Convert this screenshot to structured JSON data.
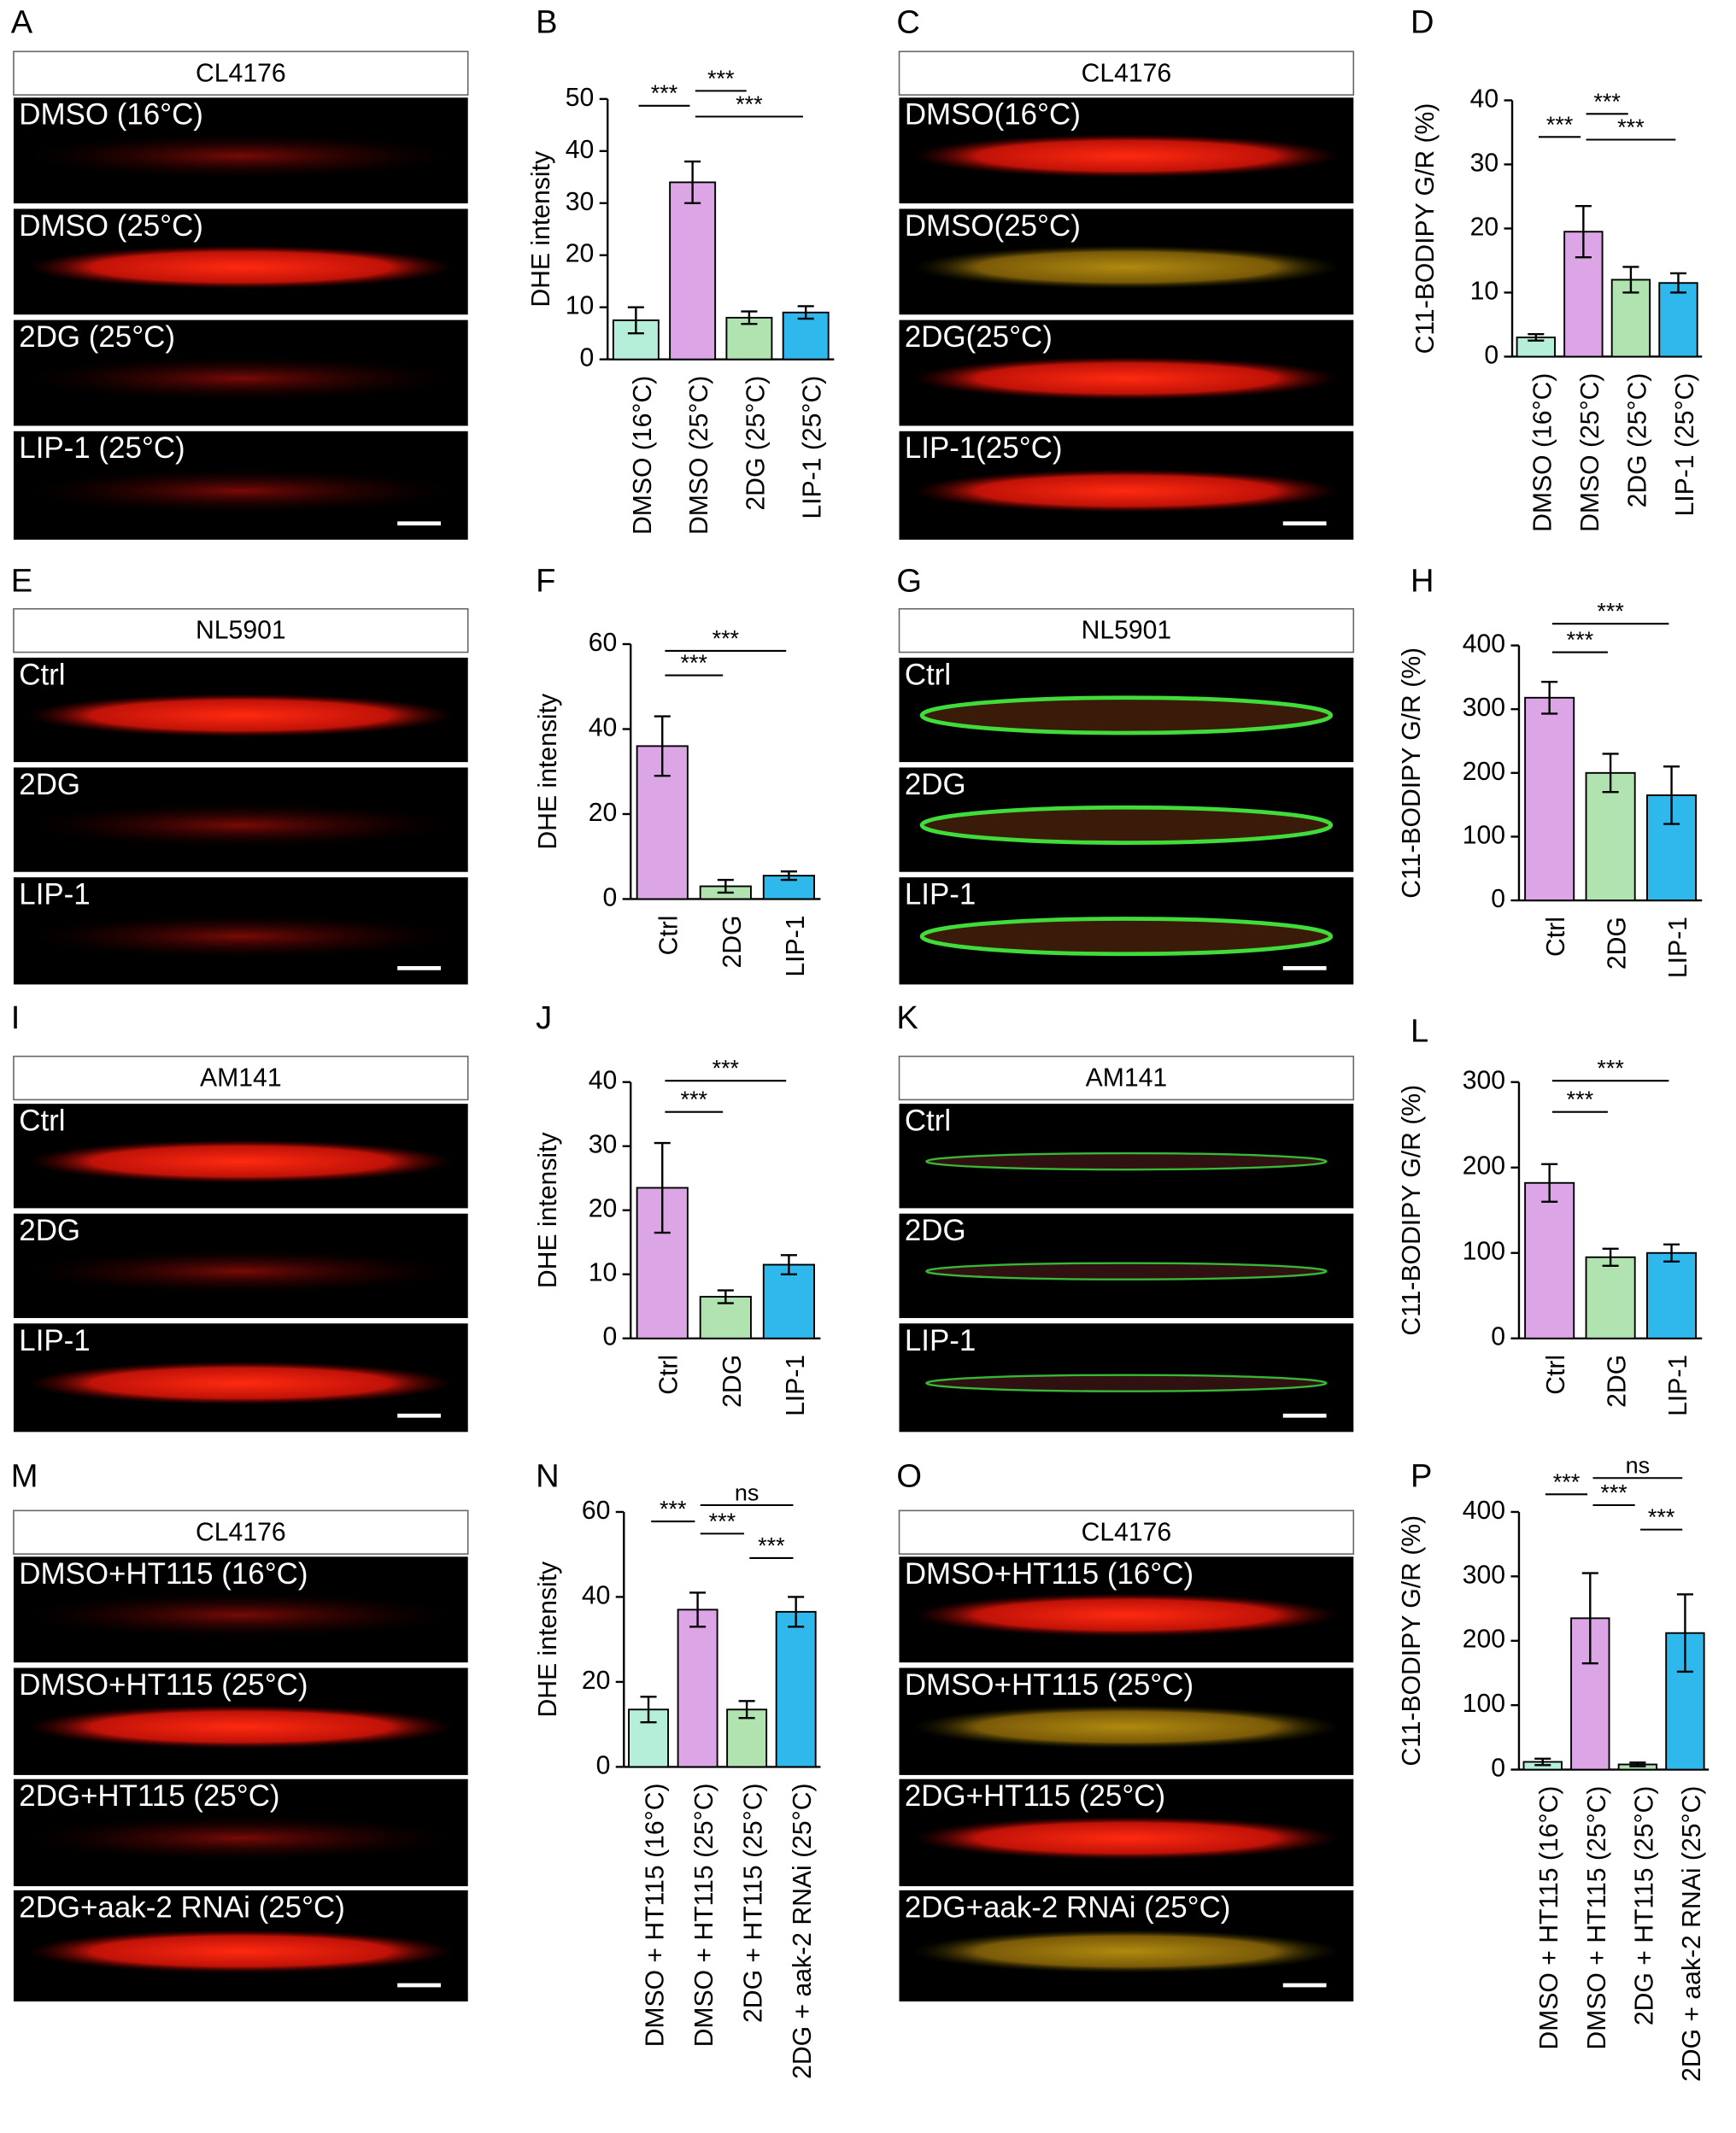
{
  "image_panels": [
    {
      "panel": "A",
      "strain": "CL4176",
      "conditions": [
        "DMSO (16°C)",
        "DMSO (25°C)",
        "2DG (25°C)",
        "LIP-1  (25°C)"
      ]
    },
    {
      "panel": "C",
      "strain": "CL4176",
      "conditions": [
        "DMSO(16°C)",
        "DMSO(25°C)",
        "2DG(25°C)",
        "LIP-1(25°C)"
      ]
    },
    {
      "panel": "E",
      "strain": "NL5901",
      "conditions": [
        "Ctrl",
        "2DG",
        "LIP-1"
      ]
    },
    {
      "panel": "G",
      "strain": "NL5901",
      "conditions": [
        "Ctrl",
        "2DG",
        "LIP-1"
      ]
    },
    {
      "panel": "I",
      "strain": "AM141",
      "conditions": [
        "Ctrl",
        "2DG",
        "LIP-1"
      ]
    },
    {
      "panel": "K",
      "strain": "AM141",
      "conditions": [
        "Ctrl",
        "2DG",
        "LIP-1"
      ]
    },
    {
      "panel": "M",
      "strain": "CL4176",
      "conditions": [
        "DMSO+HT115 (16°C)",
        "DMSO+HT115 (25°C)",
        "2DG+HT115 (25°C)",
        "2DG+aak-2 RNAi (25°C)"
      ]
    },
    {
      "panel": "O",
      "strain": "CL4176",
      "conditions": [
        "DMSO+HT115 (16°C)",
        "DMSO+HT115 (25°C)",
        "2DG+HT115 (25°C)",
        "2DG+aak-2 RNAi (25°C)"
      ]
    }
  ],
  "chart_data": [
    {
      "type": "bar",
      "panel": "B",
      "y_label": "DHE intensity",
      "categories": [
        "DMSO (16°C)",
        "DMSO (25°C)",
        "2DG (25°C)",
        "LIP-1 (25°C)"
      ],
      "values": [
        7.5,
        34,
        8,
        9
      ],
      "errors": [
        2.5,
        4,
        1.2,
        1.2
      ],
      "colors": [
        "#b5efd9",
        "#dca5e6",
        "#b0e3b0",
        "#2eb8ec"
      ],
      "ylim": [
        0,
        50
      ],
      "yticks": [
        0,
        10,
        20,
        30,
        40,
        50
      ],
      "significance": [
        {
          "from": 0,
          "to": 1,
          "label": "***"
        },
        {
          "from": 1,
          "to": 2,
          "label": "***"
        },
        {
          "from": 1,
          "to": 3,
          "label": "***"
        }
      ]
    },
    {
      "type": "bar",
      "panel": "D",
      "y_label": "C11-BODIPY G/R (%)",
      "categories": [
        "DMSO (16°C)",
        "DMSO (25°C)",
        "2DG (25°C)",
        "LIP-1 (25°C)"
      ],
      "values": [
        3,
        19.5,
        12,
        11.5
      ],
      "errors": [
        0.5,
        4,
        2,
        1.5
      ],
      "colors": [
        "#b5efd9",
        "#dca5e6",
        "#b0e3b0",
        "#2eb8ec"
      ],
      "ylim": [
        0,
        40
      ],
      "yticks": [
        0,
        10,
        20,
        30,
        40
      ],
      "significance": [
        {
          "from": 0,
          "to": 1,
          "label": "***"
        },
        {
          "from": 1,
          "to": 2,
          "label": "***"
        },
        {
          "from": 1,
          "to": 3,
          "label": "***"
        }
      ]
    },
    {
      "type": "bar",
      "panel": "F",
      "y_label": "DHE intensity",
      "categories": [
        "Ctrl",
        "2DG",
        "LIP-1"
      ],
      "values": [
        36,
        3,
        5.5
      ],
      "errors": [
        7,
        1.5,
        1
      ],
      "colors": [
        "#dca5e6",
        "#b0e3b0",
        "#2eb8ec"
      ],
      "ylim": [
        0,
        60
      ],
      "yticks": [
        0,
        20,
        40,
        60
      ],
      "significance": [
        {
          "from": 0,
          "to": 1,
          "label": "***"
        },
        {
          "from": 0,
          "to": 2,
          "label": "***"
        }
      ]
    },
    {
      "type": "bar",
      "panel": "H",
      "y_label": "C11-BODIPY G/R (%)",
      "categories": [
        "Ctrl",
        "2DG",
        "LIP-1"
      ],
      "values": [
        318,
        200,
        165
      ],
      "errors": [
        25,
        30,
        45
      ],
      "colors": [
        "#dca5e6",
        "#b0e3b0",
        "#2eb8ec"
      ],
      "ylim": [
        0,
        400
      ],
      "yticks": [
        0,
        100,
        200,
        300,
        400
      ],
      "significance": [
        {
          "from": 0,
          "to": 1,
          "label": "***"
        },
        {
          "from": 0,
          "to": 2,
          "label": "***"
        }
      ]
    },
    {
      "type": "bar",
      "panel": "J",
      "y_label": "DHE intensity",
      "categories": [
        "Ctrl",
        "2DG",
        "LIP-1"
      ],
      "values": [
        23.5,
        6.5,
        11.5
      ],
      "errors": [
        7,
        1,
        1.5
      ],
      "colors": [
        "#dca5e6",
        "#b0e3b0",
        "#2eb8ec"
      ],
      "ylim": [
        0,
        40
      ],
      "yticks": [
        0,
        10,
        20,
        30,
        40
      ],
      "significance": [
        {
          "from": 0,
          "to": 1,
          "label": "***"
        },
        {
          "from": 0,
          "to": 2,
          "label": "***"
        }
      ]
    },
    {
      "type": "bar",
      "panel": "L",
      "y_label": "C11-BODIPY G/R (%)",
      "categories": [
        "Ctrl",
        "2DG",
        "LIP-1"
      ],
      "values": [
        182,
        95,
        100
      ],
      "errors": [
        22,
        10,
        10
      ],
      "colors": [
        "#dca5e6",
        "#b0e3b0",
        "#2eb8ec"
      ],
      "ylim": [
        0,
        300
      ],
      "yticks": [
        0,
        100,
        200,
        300
      ],
      "significance": [
        {
          "from": 0,
          "to": 1,
          "label": "***"
        },
        {
          "from": 0,
          "to": 2,
          "label": "***"
        }
      ]
    },
    {
      "type": "bar",
      "panel": "N",
      "y_label": "DHE intensity",
      "categories": [
        "DMSO + HT115 (16°C)",
        "DMSO + HT115 (25°C)",
        "2DG + HT115 (25°C)",
        "2DG + aak-2 RNAi (25°C)"
      ],
      "values": [
        13.5,
        37,
        13.5,
        36.5
      ],
      "errors": [
        3,
        4,
        2,
        3.5
      ],
      "colors": [
        "#b5efd9",
        "#dca5e6",
        "#b0e3b0",
        "#2eb8ec"
      ],
      "ylim": [
        0,
        60
      ],
      "yticks": [
        0,
        20,
        40,
        60
      ],
      "significance": [
        {
          "from": 0,
          "to": 1,
          "label": "***"
        },
        {
          "from": 1,
          "to": 3,
          "label": "ns"
        },
        {
          "from": 1,
          "to": 2,
          "label": "***"
        },
        {
          "from": 2,
          "to": 3,
          "label": "***"
        }
      ]
    },
    {
      "type": "bar",
      "panel": "P",
      "y_label": "C11-BODIPY G/R (%)",
      "categories": [
        "DMSO + HT115 (16°C)",
        "DMSO + HT115 (25°C)",
        "2DG + HT115 (25°C)",
        "2DG + aak-2 RNAi (25°C)"
      ],
      "values": [
        12,
        235,
        8,
        212
      ],
      "errors": [
        5,
        70,
        3,
        60
      ],
      "colors": [
        "#b5efd9",
        "#dca5e6",
        "#b0e3b0",
        "#2eb8ec"
      ],
      "ylim": [
        0,
        400
      ],
      "yticks": [
        0,
        100,
        200,
        300,
        400
      ],
      "significance": [
        {
          "from": 0,
          "to": 1,
          "label": "***"
        },
        {
          "from": 1,
          "to": 3,
          "label": "ns"
        },
        {
          "from": 1,
          "to": 2,
          "label": "***"
        },
        {
          "from": 2,
          "to": 3,
          "label": "***"
        }
      ]
    }
  ]
}
